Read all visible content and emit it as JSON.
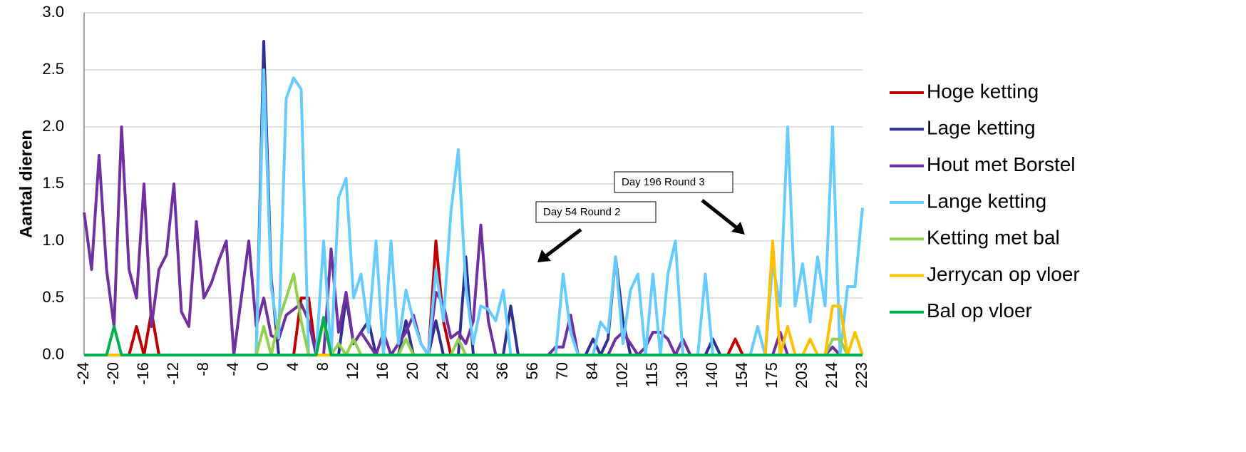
{
  "chart_data": {
    "type": "line",
    "y_label": "Aantal dieren",
    "categories": [
      -24,
      null,
      null,
      null,
      -20,
      null,
      null,
      null,
      -16,
      null,
      null,
      null,
      -12,
      null,
      null,
      null,
      -8,
      null,
      null,
      null,
      -4,
      null,
      null,
      null,
      0,
      null,
      null,
      null,
      4,
      null,
      null,
      null,
      8,
      null,
      null,
      null,
      12,
      null,
      null,
      null,
      16,
      null,
      null,
      null,
      20,
      null,
      null,
      null,
      24,
      null,
      null,
      null,
      28,
      null,
      null,
      null,
      36,
      null,
      null,
      null,
      56,
      null,
      null,
      null,
      70,
      null,
      null,
      null,
      84,
      null,
      null,
      null,
      102,
      null,
      null,
      null,
      115,
      null,
      null,
      null,
      130,
      null,
      null,
      null,
      140,
      null,
      null,
      null,
      154,
      null,
      null,
      null,
      175,
      null,
      null,
      null,
      203,
      null,
      null,
      null,
      214,
      null,
      null,
      null,
      223
    ],
    "series": [
      {
        "name": "Hoge ketting",
        "color": "#c00000",
        "values": [
          0,
          0,
          0,
          0,
          0,
          0,
          0,
          0.25,
          0,
          0.38,
          0,
          0,
          0,
          0,
          0,
          0,
          0,
          0,
          0,
          0,
          0,
          0,
          0,
          0,
          0,
          0,
          0,
          0,
          0,
          0.5,
          0.5,
          0,
          0,
          0,
          0,
          0,
          0,
          0,
          0,
          0,
          0,
          0,
          0,
          0,
          0,
          0,
          0,
          1.0,
          0.3,
          0,
          0,
          0,
          0,
          0,
          0,
          0,
          0,
          0,
          0,
          0,
          0,
          0,
          0,
          0,
          0,
          0,
          0,
          0,
          0,
          0,
          0,
          0,
          0,
          0,
          0,
          0,
          0,
          0,
          0,
          0,
          0,
          0,
          0,
          0,
          0,
          0,
          0,
          0.14,
          0,
          0,
          0,
          0,
          0,
          0,
          0,
          0,
          0,
          0,
          0,
          0,
          0,
          0,
          0,
          0,
          0
        ]
      },
      {
        "name": "Lage ketting",
        "color": "#2e3192",
        "values": [
          0,
          0,
          0,
          0,
          0,
          0,
          0,
          0,
          0,
          0,
          0,
          0,
          0,
          0,
          0,
          0,
          0,
          0,
          0,
          0,
          0,
          0,
          0,
          0,
          2.75,
          0.67,
          0,
          0,
          0,
          0,
          0,
          0,
          0,
          0,
          0,
          0.5,
          0.1,
          0.2,
          0.3,
          0,
          0,
          0,
          0,
          0.3,
          0,
          0,
          0,
          0.3,
          0,
          0,
          0,
          0.86,
          0,
          0,
          0,
          0,
          0,
          0.43,
          0,
          0,
          0,
          0,
          0,
          0,
          0,
          0,
          0,
          0,
          0.14,
          0,
          0.14,
          0.86,
          0.3,
          0,
          0,
          0,
          0,
          0,
          0,
          0,
          0,
          0,
          0,
          0,
          0.14,
          0,
          0,
          0,
          0,
          0,
          0,
          0,
          0,
          0,
          0,
          0,
          0,
          0,
          0,
          0,
          0,
          0,
          0,
          0,
          0
        ]
      },
      {
        "name": "Hout met Borstel",
        "color": "#7030a0",
        "values": [
          1.25,
          0.75,
          1.75,
          0.75,
          0.25,
          2.0,
          0.75,
          0.5,
          1.5,
          0.25,
          0.75,
          0.88,
          1.5,
          0.38,
          0.25,
          1.17,
          0.5,
          0.63,
          0.83,
          1.0,
          0,
          0.5,
          1.0,
          0.25,
          0.5,
          0.17,
          0.14,
          0.35,
          0.4,
          0.45,
          0.3,
          0,
          0,
          0.93,
          0.2,
          0.55,
          0.1,
          0.2,
          0.1,
          0,
          0.2,
          0,
          0.1,
          0.2,
          0.35,
          0.1,
          0,
          0.55,
          0.45,
          0.15,
          0.2,
          0.1,
          0.3,
          1.14,
          0.3,
          0,
          0,
          0,
          0,
          0,
          0,
          0,
          0,
          0.07,
          0.07,
          0.35,
          0,
          0,
          0,
          0,
          0,
          0.14,
          0.2,
          0.1,
          0,
          0.07,
          0.2,
          0.2,
          0.14,
          0,
          0.14,
          0,
          0,
          0,
          0,
          0,
          0,
          0,
          0,
          0,
          0,
          0,
          0,
          0.2,
          0,
          0,
          0,
          0,
          0,
          0,
          0.07,
          0,
          0,
          0,
          0
        ]
      },
      {
        "name": "Lange ketting",
        "color": "#66ccff",
        "values": [
          0,
          0,
          0,
          0,
          0,
          0,
          0,
          0,
          0,
          0,
          0,
          0,
          0,
          0,
          0,
          0,
          0,
          0,
          0,
          0,
          0,
          0,
          0,
          0,
          2.5,
          0.6,
          0.15,
          2.25,
          2.43,
          2.33,
          0,
          0,
          1.0,
          0,
          1.38,
          1.55,
          0.5,
          0.71,
          0.2,
          1.0,
          0,
          1.0,
          0.1,
          0.57,
          0.3,
          0.1,
          0,
          0.75,
          0.3,
          1.25,
          1.8,
          0.6,
          0.1,
          0.43,
          0.4,
          0.3,
          0.57,
          0,
          0,
          0,
          0,
          0,
          0,
          0,
          0.71,
          0.2,
          0,
          0,
          0,
          0.29,
          0.2,
          0.86,
          0.1,
          0.57,
          0.71,
          0,
          0.71,
          0,
          0.71,
          1.0,
          0,
          0,
          0,
          0.71,
          0,
          0,
          0,
          0,
          0,
          0,
          0.25,
          0,
          0.8,
          0.43,
          2.0,
          0.43,
          0.8,
          0.29,
          0.86,
          0.43,
          2.0,
          0,
          0.6,
          0.6,
          1.29
        ]
      },
      {
        "name": "Ketting met bal",
        "color": "#92d050",
        "values": [
          0,
          0,
          0,
          0,
          0,
          0,
          0,
          0,
          0,
          0,
          0,
          0,
          0,
          0,
          0,
          0,
          0,
          0,
          0,
          0,
          0,
          0,
          0,
          0,
          0.25,
          0,
          0.3,
          0.5,
          0.71,
          0.3,
          0,
          0,
          0.3,
          0,
          0.1,
          0,
          0.14,
          0,
          0,
          0,
          0,
          0,
          0,
          0.14,
          0,
          0,
          0,
          0,
          0,
          0,
          0.14,
          0,
          0,
          0,
          0,
          0,
          0,
          0,
          0,
          0,
          0,
          0,
          0,
          0,
          0,
          0,
          0,
          0,
          0,
          0,
          0,
          0,
          0,
          0,
          0,
          0,
          0,
          0,
          0,
          0,
          0,
          0,
          0,
          0,
          0,
          0,
          0,
          0,
          0,
          0,
          0,
          0,
          0,
          0,
          0,
          0,
          0,
          0,
          0,
          0,
          0.14,
          0.14,
          0,
          0,
          0
        ]
      },
      {
        "name": "Jerrycan op vloer",
        "color": "#ffc000",
        "values": [
          0,
          0,
          0,
          0,
          0,
          0,
          0,
          0,
          0,
          0,
          0,
          0,
          0,
          0,
          0,
          0,
          0,
          0,
          0,
          0,
          0,
          0,
          0,
          0,
          0,
          0,
          0,
          0,
          0,
          0,
          0,
          0,
          0,
          0,
          0,
          0,
          0,
          0,
          0,
          0,
          0,
          0,
          0,
          0,
          0,
          0,
          0,
          0,
          0,
          0,
          0,
          0,
          0,
          0,
          0,
          0,
          0,
          0,
          0,
          0,
          0,
          0,
          0,
          0,
          0,
          0,
          0,
          0,
          0,
          0,
          0,
          0,
          0,
          0,
          0,
          0,
          0,
          0,
          0,
          0,
          0,
          0,
          0,
          0,
          0,
          0,
          0,
          0,
          0,
          0,
          0,
          0,
          1.0,
          0,
          0.25,
          0,
          0,
          0.14,
          0,
          0,
          0.43,
          0.43,
          0,
          0.2,
          0
        ]
      },
      {
        "name": "Bal op vloer",
        "color": "#00b050",
        "values": [
          0,
          0,
          0,
          0,
          0.25,
          0,
          0,
          0,
          0,
          0,
          0,
          0,
          0,
          0,
          0,
          0,
          0,
          0,
          0,
          0,
          0,
          0,
          0,
          0,
          0,
          0,
          0,
          0,
          0,
          0,
          0,
          0,
          0.33,
          0,
          0,
          0,
          0,
          0,
          0,
          0,
          0,
          0,
          0,
          0,
          0,
          0,
          0,
          0,
          0,
          0,
          0,
          0,
          0,
          0,
          0,
          0,
          0,
          0,
          0,
          0,
          0,
          0,
          0,
          0,
          0,
          0,
          0,
          0,
          0,
          0,
          0,
          0,
          0,
          0,
          0,
          0,
          0,
          0,
          0,
          0,
          0,
          0,
          0,
          0,
          0,
          0,
          0,
          0,
          0,
          0,
          0,
          0,
          0,
          0,
          0,
          0,
          0,
          0,
          0,
          0,
          0,
          0,
          0,
          0,
          0
        ]
      }
    ],
    "ylim": [
      0,
      3
    ],
    "yticks": [
      {
        "value": 0,
        "label": "0.0"
      },
      0.5,
      {
        "value": 1,
        "label": "1.0"
      },
      1.5,
      {
        "value": 2,
        "label": "2.0"
      },
      2.5,
      {
        "value": 3,
        "label": "3.0"
      }
    ],
    "grid": true,
    "legend": "right",
    "annotations": [
      "Day 54 Round 2",
      "Day 196 Round 3"
    ]
  }
}
